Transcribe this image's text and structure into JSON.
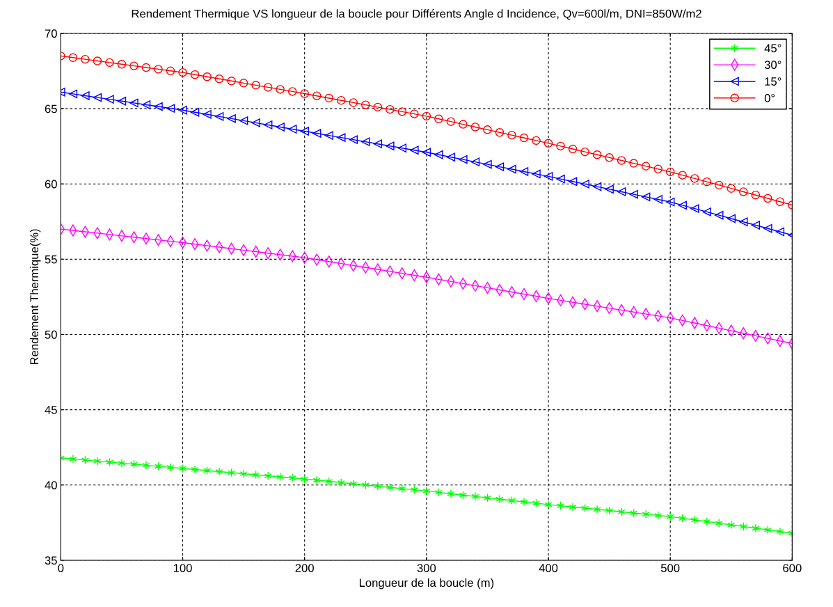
{
  "chart_data": {
    "type": "line",
    "title": "Rendement Thermique VS longueur de la boucle pour Différents Angle d Incidence, Qv=600l/m, DNI=850W/m2",
    "xlabel": "Longueur de la boucle (m)",
    "ylabel": "Rendement Thermique(%)",
    "x": [
      0,
      10,
      20,
      30,
      40,
      50,
      60,
      70,
      80,
      90,
      100,
      110,
      120,
      130,
      140,
      150,
      160,
      170,
      180,
      190,
      200,
      210,
      220,
      230,
      240,
      250,
      260,
      270,
      280,
      290,
      300,
      310,
      320,
      330,
      340,
      350,
      360,
      370,
      380,
      390,
      400,
      410,
      420,
      430,
      440,
      450,
      460,
      470,
      480,
      490,
      500,
      510,
      520,
      530,
      540,
      550,
      560,
      570,
      580,
      590,
      600
    ],
    "series": [
      {
        "name": "45°",
        "color": "#00ff00",
        "marker": "cross",
        "values": [
          41.8,
          41.73,
          41.66,
          41.59,
          41.52,
          41.45,
          41.38,
          41.31,
          41.24,
          41.17,
          41.1,
          41.03,
          40.96,
          40.89,
          40.82,
          40.75,
          40.68,
          40.61,
          40.54,
          40.47,
          40.4,
          40.32,
          40.24,
          40.16,
          40.08,
          40.0,
          39.92,
          39.84,
          39.76,
          39.68,
          39.6,
          39.51,
          39.42,
          39.33,
          39.24,
          39.15,
          39.06,
          38.97,
          38.88,
          38.79,
          38.7,
          38.62,
          38.54,
          38.46,
          38.38,
          38.3,
          38.22,
          38.14,
          38.06,
          37.98,
          37.9,
          37.79,
          37.68,
          37.57,
          37.46,
          37.35,
          37.24,
          37.13,
          37.02,
          36.91,
          36.8
        ]
      },
      {
        "name": "30°",
        "color": "#ff00ff",
        "marker": "diamond",
        "values": [
          57.0,
          56.91,
          56.82,
          56.73,
          56.64,
          56.55,
          56.46,
          56.37,
          56.28,
          56.19,
          56.1,
          56.0,
          55.9,
          55.8,
          55.7,
          55.6,
          55.5,
          55.4,
          55.3,
          55.2,
          55.1,
          54.97,
          54.84,
          54.71,
          54.58,
          54.45,
          54.32,
          54.19,
          54.06,
          53.93,
          53.8,
          53.66,
          53.52,
          53.38,
          53.24,
          53.1,
          52.96,
          52.82,
          52.68,
          52.54,
          52.4,
          52.27,
          52.14,
          52.01,
          51.88,
          51.75,
          51.62,
          51.49,
          51.36,
          51.23,
          51.1,
          50.93,
          50.76,
          50.59,
          50.42,
          50.25,
          50.08,
          49.91,
          49.74,
          49.57,
          49.4
        ]
      },
      {
        "name": "15°",
        "color": "#0000ff",
        "marker": "triangle",
        "values": [
          66.1,
          65.98,
          65.86,
          65.74,
          65.62,
          65.5,
          65.38,
          65.26,
          65.14,
          65.02,
          64.9,
          64.76,
          64.62,
          64.48,
          64.34,
          64.2,
          64.06,
          63.92,
          63.78,
          63.64,
          63.5,
          63.36,
          63.22,
          63.08,
          62.94,
          62.8,
          62.66,
          62.52,
          62.38,
          62.24,
          62.1,
          61.94,
          61.78,
          61.62,
          61.46,
          61.3,
          61.14,
          60.98,
          60.82,
          60.66,
          60.5,
          60.33,
          60.16,
          59.99,
          59.82,
          59.65,
          59.48,
          59.31,
          59.14,
          58.97,
          58.8,
          58.58,
          58.36,
          58.14,
          57.92,
          57.7,
          57.48,
          57.26,
          57.04,
          56.82,
          56.6
        ]
      },
      {
        "name": "0°",
        "color": "#ff0000",
        "marker": "circle",
        "values": [
          68.5,
          68.39,
          68.28,
          68.17,
          68.06,
          67.95,
          67.84,
          67.73,
          67.62,
          67.51,
          67.4,
          67.26,
          67.12,
          66.98,
          66.84,
          66.7,
          66.56,
          66.42,
          66.28,
          66.14,
          66.0,
          65.85,
          65.7,
          65.55,
          65.4,
          65.25,
          65.1,
          64.95,
          64.8,
          64.65,
          64.5,
          64.32,
          64.14,
          63.96,
          63.78,
          63.6,
          63.42,
          63.24,
          63.06,
          62.88,
          62.7,
          62.51,
          62.32,
          62.13,
          61.94,
          61.75,
          61.56,
          61.37,
          61.18,
          60.99,
          60.8,
          60.58,
          60.36,
          60.14,
          59.92,
          59.7,
          59.48,
          59.26,
          59.04,
          58.82,
          58.6
        ]
      }
    ],
    "xlim": [
      0,
      600
    ],
    "xticks": [
      0,
      100,
      200,
      300,
      400,
      500,
      600
    ],
    "ylim": [
      35,
      70
    ],
    "yticks": [
      35,
      40,
      45,
      50,
      55,
      60,
      65,
      70
    ],
    "grid": true,
    "legend": "top right",
    "line_style": "solid"
  }
}
